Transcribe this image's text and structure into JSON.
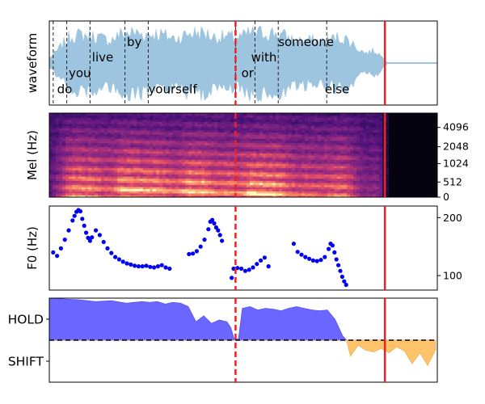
{
  "chart_data": [
    {
      "type": "area",
      "panel": "waveform",
      "ylabel": "waveform",
      "color": "#9ec5e0",
      "words": [
        {
          "text": "do",
          "t": 0.02,
          "level": "low"
        },
        {
          "text": "you",
          "t": 0.05,
          "level": "lowmid"
        },
        {
          "text": "live",
          "t": 0.11,
          "level": "mid"
        },
        {
          "text": "by",
          "t": 0.2,
          "level": "high"
        },
        {
          "text": "yourself",
          "t": 0.255,
          "level": "low"
        },
        {
          "text": "or",
          "t": 0.495,
          "level": "lowmid"
        },
        {
          "text": "with",
          "t": 0.52,
          "level": "mid"
        },
        {
          "text": "someone",
          "t": 0.59,
          "level": "high"
        },
        {
          "text": "else",
          "t": 0.71,
          "level": "low"
        }
      ],
      "word_boundaries": [
        0.01,
        0.045,
        0.105,
        0.195,
        0.255,
        0.48,
        0.53,
        0.59,
        0.715
      ]
    },
    {
      "type": "heatmap",
      "panel": "mel-spectrogram",
      "ylabel": "Mel (Hz)",
      "colormap": "magma",
      "yticks": [
        "0",
        "512",
        "1024",
        "2048",
        "4096"
      ]
    },
    {
      "type": "scatter",
      "panel": "f0",
      "ylabel": "F0 (Hz)",
      "color": "#0000ee",
      "yticks": [
        100,
        200
      ],
      "ylim": [
        75,
        220
      ],
      "x": [
        0.01,
        0.02,
        0.03,
        0.04,
        0.05,
        0.06,
        0.065,
        0.07,
        0.075,
        0.08,
        0.085,
        0.09,
        0.095,
        0.1,
        0.105,
        0.11,
        0.12,
        0.13,
        0.14,
        0.15,
        0.16,
        0.17,
        0.18,
        0.19,
        0.2,
        0.21,
        0.22,
        0.23,
        0.24,
        0.25,
        0.26,
        0.27,
        0.28,
        0.29,
        0.3,
        0.31,
        0.36,
        0.37,
        0.38,
        0.39,
        0.4,
        0.41,
        0.415,
        0.42,
        0.425,
        0.43,
        0.435,
        0.44,
        0.445,
        0.47,
        0.475,
        0.485,
        0.495,
        0.505,
        0.515,
        0.525,
        0.535,
        0.545,
        0.555,
        0.565,
        0.63,
        0.64,
        0.65,
        0.66,
        0.67,
        0.68,
        0.69,
        0.7,
        0.71,
        0.72,
        0.725,
        0.73,
        0.735,
        0.74,
        0.745,
        0.75,
        0.755,
        0.76,
        0.765
      ],
      "y": [
        140,
        134,
        147,
        162,
        178,
        195,
        203,
        210,
        213,
        211,
        198,
        186,
        174,
        165,
        160,
        166,
        178,
        170,
        158,
        147,
        139,
        132,
        128,
        124,
        121,
        119,
        117,
        116,
        116,
        117,
        115,
        114,
        116,
        118,
        114,
        112,
        137,
        138,
        142,
        150,
        162,
        180,
        193,
        196,
        190,
        183,
        178,
        170,
        160,
        96,
        112,
        113,
        112,
        108,
        110,
        114,
        120,
        126,
        131,
        116,
        155,
        141,
        136,
        132,
        129,
        126,
        125,
        127,
        132,
        146,
        155,
        152,
        140,
        128,
        118,
        108,
        98,
        90,
        84
      ]
    },
    {
      "type": "area",
      "panel": "turn-taking",
      "ytick_labels": [
        "HOLD",
        "SHIFT"
      ],
      "hold_color": "#6b66ff",
      "shift_color": "#ffc46b",
      "threshold": 0.5,
      "x": [
        0.0,
        0.04,
        0.08,
        0.12,
        0.16,
        0.2,
        0.24,
        0.26,
        0.28,
        0.3,
        0.32,
        0.34,
        0.36,
        0.38,
        0.4,
        0.42,
        0.44,
        0.46,
        0.47,
        0.48,
        0.49,
        0.5,
        0.52,
        0.54,
        0.56,
        0.58,
        0.6,
        0.62,
        0.64,
        0.66,
        0.68,
        0.7,
        0.72,
        0.74,
        0.76,
        0.77,
        0.78,
        0.8,
        0.82,
        0.84,
        0.86,
        0.88,
        0.9,
        0.92,
        0.94,
        0.96,
        0.98,
        1.0
      ],
      "y": [
        1.0,
        0.99,
        0.98,
        0.96,
        0.97,
        0.94,
        0.96,
        0.95,
        0.96,
        0.93,
        0.95,
        0.94,
        0.9,
        0.72,
        0.79,
        0.7,
        0.74,
        0.72,
        0.65,
        0.5,
        0.52,
        0.88,
        0.9,
        0.86,
        0.88,
        0.87,
        0.85,
        0.88,
        0.9,
        0.88,
        0.86,
        0.85,
        0.86,
        0.75,
        0.55,
        0.5,
        0.31,
        0.44,
        0.38,
        0.36,
        0.4,
        0.35,
        0.42,
        0.37,
        0.22,
        0.35,
        0.2,
        0.38
      ],
      "x_extent": 0.995
    }
  ],
  "markers": {
    "dashed_red_t": 0.48,
    "solid_red_t": 0.865,
    "color": "#ee2222"
  }
}
